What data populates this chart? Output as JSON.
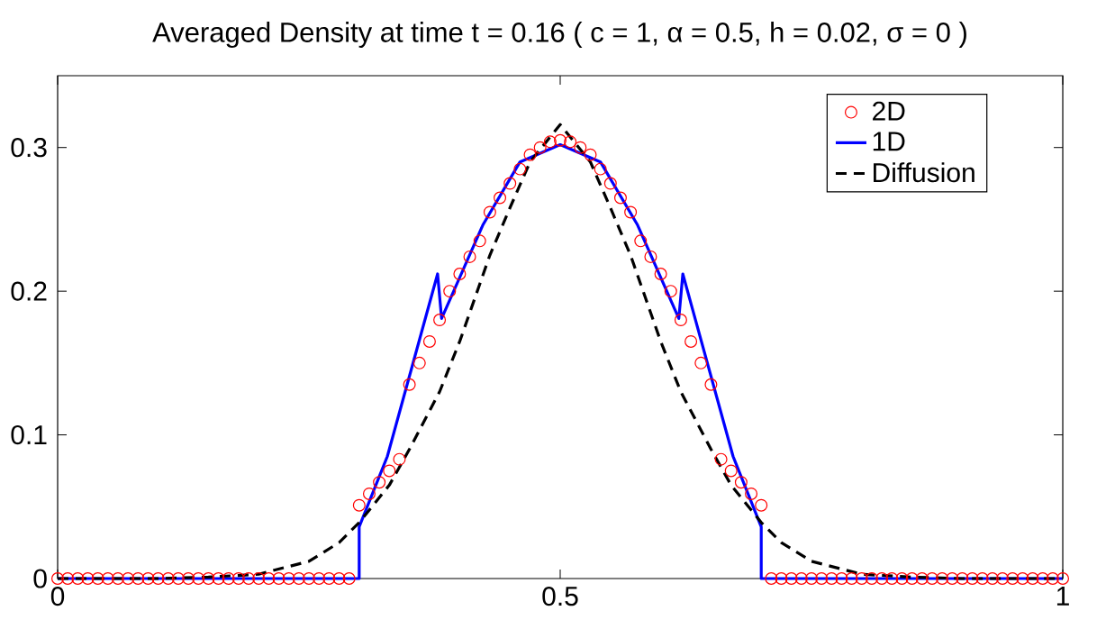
{
  "chart_data": {
    "type": "line",
    "title": "Averaged Density at time t = 0.16    ( c = 1, α = 0.5, h = 0.02, σ = 0 )",
    "xlim": [
      0,
      1
    ],
    "ylim": [
      0,
      0.35
    ],
    "xticks": [
      0,
      0.5,
      1
    ],
    "yticks": [
      0,
      0.1,
      0.2,
      0.3
    ],
    "grid": false,
    "legend": "top right",
    "series": [
      {
        "name": "2D",
        "type": "scatter",
        "marker": "circle",
        "color": "#ff0000",
        "x": [
          0,
          0.01,
          0.02,
          0.03,
          0.04,
          0.05,
          0.06,
          0.07,
          0.08,
          0.09,
          0.1,
          0.11,
          0.12,
          0.13,
          0.14,
          0.15,
          0.16,
          0.17,
          0.18,
          0.19,
          0.2,
          0.21,
          0.22,
          0.23,
          0.24,
          0.25,
          0.26,
          0.27,
          0.28,
          0.29,
          0.3,
          0.31,
          0.32,
          0.33,
          0.34,
          0.35,
          0.36,
          0.37,
          0.38,
          0.39,
          0.4,
          0.41,
          0.42,
          0.43,
          0.44,
          0.45,
          0.46,
          0.47,
          0.48,
          0.49,
          0.5,
          0.51,
          0.52,
          0.53,
          0.54,
          0.55,
          0.56,
          0.57,
          0.58,
          0.59,
          0.6,
          0.61,
          0.62,
          0.63,
          0.64,
          0.65,
          0.66,
          0.67,
          0.68,
          0.69,
          0.7,
          0.71,
          0.72,
          0.73,
          0.74,
          0.75,
          0.76,
          0.77,
          0.78,
          0.79,
          0.8,
          0.81,
          0.82,
          0.83,
          0.84,
          0.85,
          0.86,
          0.87,
          0.88,
          0.89,
          0.9,
          0.91,
          0.92,
          0.93,
          0.94,
          0.95,
          0.96,
          0.97,
          0.98,
          0.99,
          1
        ],
        "values": [
          0,
          0,
          0,
          0,
          0,
          0,
          0,
          0,
          0,
          0,
          0,
          0,
          0,
          0,
          0,
          0,
          0,
          0,
          0,
          0,
          0,
          0,
          0,
          0,
          0,
          0,
          0,
          0,
          0,
          0,
          0.051,
          0.059,
          0.067,
          0.075,
          0.083,
          0.135,
          0.15,
          0.165,
          0.18,
          0.2,
          0.212,
          0.224,
          0.235,
          0.255,
          0.265,
          0.275,
          0.285,
          0.295,
          0.3,
          0.304,
          0.305,
          0.304,
          0.3,
          0.295,
          0.285,
          0.275,
          0.265,
          0.255,
          0.235,
          0.224,
          0.212,
          0.2,
          0.18,
          0.165,
          0.15,
          0.135,
          0.083,
          0.075,
          0.067,
          0.059,
          0.051,
          0,
          0,
          0,
          0,
          0,
          0,
          0,
          0,
          0,
          0,
          0,
          0,
          0,
          0,
          0,
          0,
          0,
          0,
          0,
          0,
          0,
          0,
          0,
          0,
          0,
          0,
          0,
          0,
          0,
          0
        ]
      },
      {
        "name": "1D",
        "line_style": "solid",
        "color": "#0000ff",
        "x": [
          0,
          0.3,
          0.3,
          0.328,
          0.378,
          0.382,
          0.423,
          0.46,
          0.5,
          0.54,
          0.577,
          0.618,
          0.622,
          0.672,
          0.7,
          0.7,
          1
        ],
        "values": [
          0,
          0,
          0.036,
          0.085,
          0.212,
          0.181,
          0.246,
          0.29,
          0.302,
          0.29,
          0.246,
          0.181,
          0.212,
          0.085,
          0.036,
          0,
          0
        ]
      },
      {
        "name": "Diffusion",
        "line_style": "dashed",
        "color": "#000000",
        "x": [
          0,
          0.1,
          0.15,
          0.2,
          0.25,
          0.28,
          0.3,
          0.33,
          0.35,
          0.38,
          0.4,
          0.43,
          0.45,
          0.47,
          0.5,
          0.53,
          0.55,
          0.57,
          0.6,
          0.62,
          0.65,
          0.67,
          0.7,
          0.72,
          0.75,
          0.8,
          0.85,
          0.9,
          1
        ],
        "values": [
          0,
          0,
          0.001,
          0.003,
          0.012,
          0.025,
          0.039,
          0.065,
          0.09,
          0.13,
          0.165,
          0.225,
          0.258,
          0.29,
          0.316,
          0.29,
          0.258,
          0.225,
          0.165,
          0.13,
          0.09,
          0.065,
          0.039,
          0.025,
          0.012,
          0.003,
          0.001,
          0,
          0
        ]
      }
    ]
  }
}
